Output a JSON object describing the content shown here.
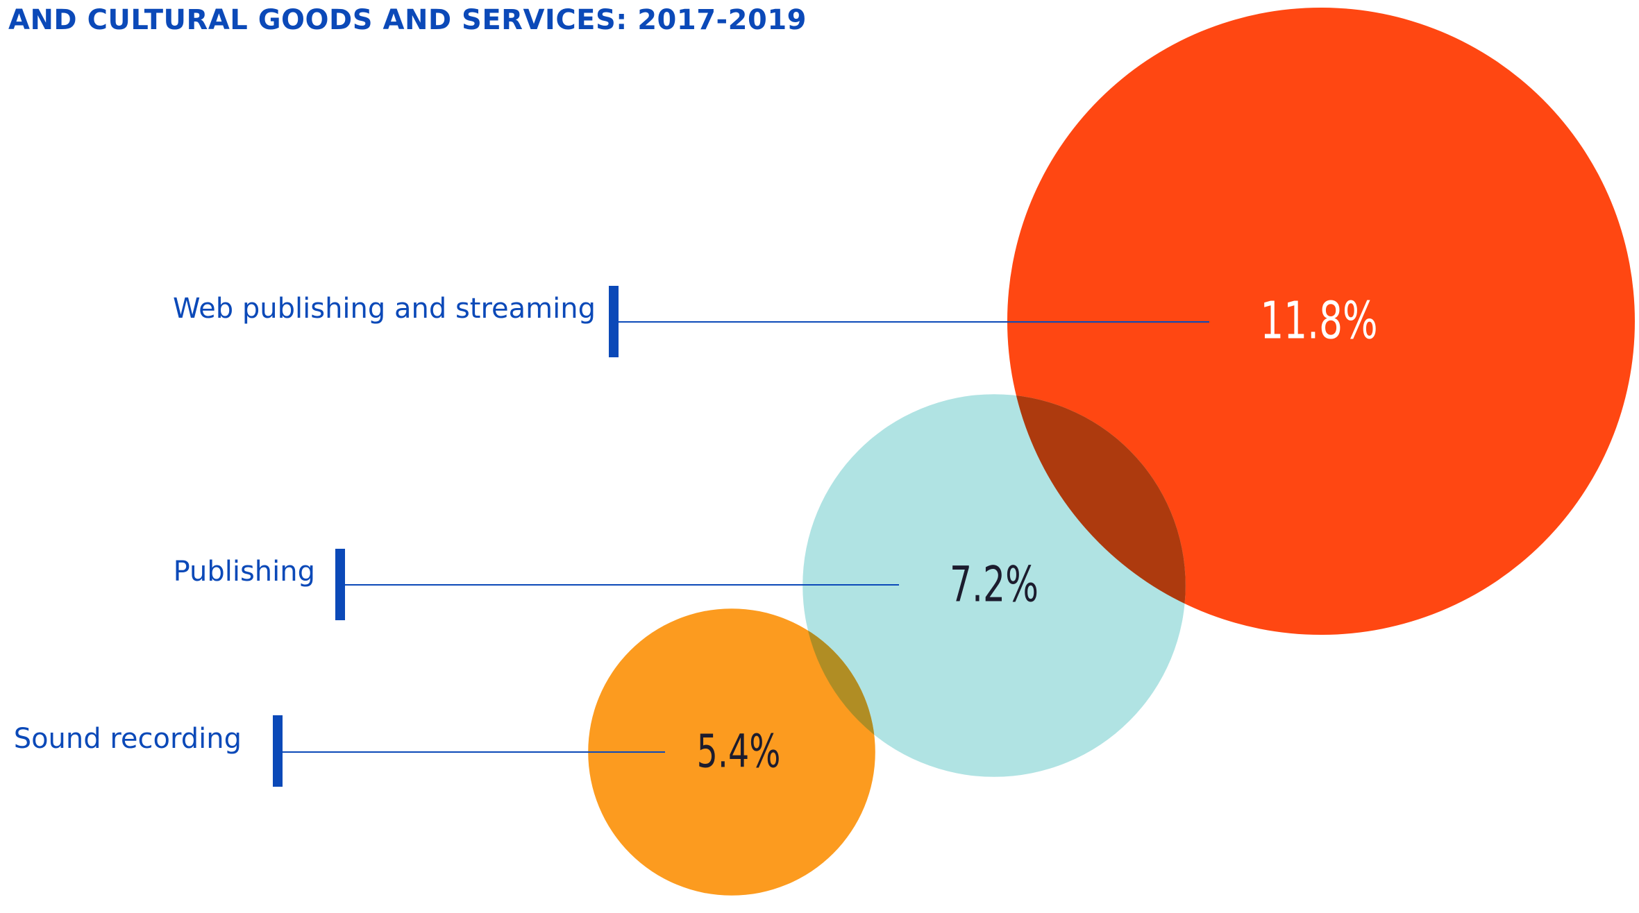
{
  "chart_data": {
    "type": "bubble",
    "title": "AND CULTURAL GOODS AND SERVICES: 2017-2019",
    "unit": "%",
    "categories": [
      "Web publishing and streaming",
      "Publishing",
      "Sound recording"
    ],
    "values": [
      11.8,
      7.2,
      5.4
    ],
    "value_labels": [
      "11.8%",
      "7.2%",
      "5.4%"
    ],
    "bubble_colors": [
      "#ff4712",
      "#b0e3e3",
      "#fc9b1f"
    ],
    "value_label_colors": [
      "#ffffff",
      "#1c1c2e",
      "#1c1c2e"
    ],
    "overlap_colors": {
      "web_publishing": "#ad3a0e",
      "sound_recording": "#b08d24"
    },
    "label_color": "#0b49b8",
    "connector_color": "#0b49b8"
  }
}
